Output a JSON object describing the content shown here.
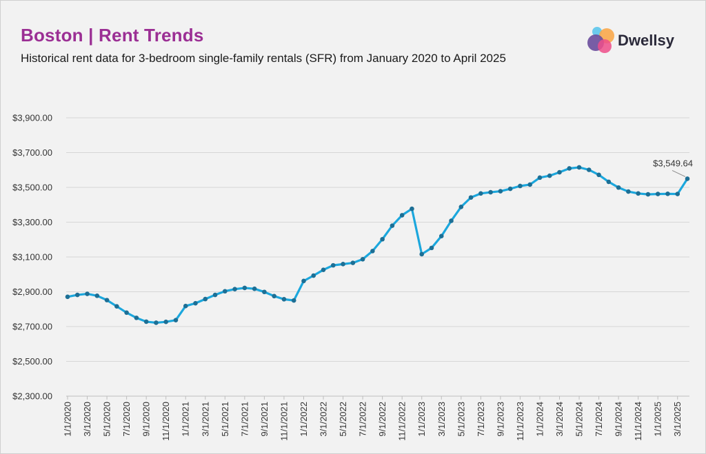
{
  "header": {
    "title": "Boston | Rent Trends",
    "subtitle": "Historical rent data for 3-bedroom single-family rentals (SFR) from January 2020 to April 2025"
  },
  "brand": {
    "name": "Dwellsy",
    "logo_colors": [
      "#5cc6ec",
      "#f9a94b",
      "#6a4c9c",
      "#ee4e8a"
    ]
  },
  "colors": {
    "line": "#1ba7dd",
    "marker": "#1d6f95",
    "grid": "#d6d6d6",
    "title": "#9b2f94"
  },
  "chart_data": {
    "type": "line",
    "title": "Boston | Rent Trends",
    "xlabel": "",
    "ylabel": "",
    "ylim": [
      2300,
      3900
    ],
    "yticks": [
      "$2,300.00",
      "$2,500.00",
      "$2,700.00",
      "$2,900.00",
      "$3,100.00",
      "$3,300.00",
      "$3,500.00",
      "$3,700.00",
      "$3,900.00"
    ],
    "grid": true,
    "x": [
      "1/1/2020",
      "2/1/2020",
      "3/1/2020",
      "4/1/2020",
      "5/1/2020",
      "6/1/2020",
      "7/1/2020",
      "8/1/2020",
      "9/1/2020",
      "10/1/2020",
      "11/1/2020",
      "12/1/2020",
      "1/1/2021",
      "2/1/2021",
      "3/1/2021",
      "4/1/2021",
      "5/1/2021",
      "6/1/2021",
      "7/1/2021",
      "8/1/2021",
      "9/1/2021",
      "10/1/2021",
      "11/1/2021",
      "12/1/2021",
      "1/1/2022",
      "2/1/2022",
      "3/1/2022",
      "4/1/2022",
      "5/1/2022",
      "6/1/2022",
      "7/1/2022",
      "8/1/2022",
      "9/1/2022",
      "10/1/2022",
      "11/1/2022",
      "12/1/2022",
      "1/1/2023",
      "2/1/2023",
      "3/1/2023",
      "4/1/2023",
      "5/1/2023",
      "6/1/2023",
      "7/1/2023",
      "8/1/2023",
      "9/1/2023",
      "10/1/2023",
      "11/1/2023",
      "12/1/2023",
      "1/1/2024",
      "2/1/2024",
      "3/1/2024",
      "4/1/2024",
      "5/1/2024",
      "6/1/2024",
      "7/1/2024",
      "8/1/2024",
      "9/1/2024",
      "10/1/2024",
      "11/1/2024",
      "12/1/2024",
      "1/1/2025",
      "2/1/2025",
      "3/1/2025",
      "4/1/2025"
    ],
    "x_tick_labels": [
      "1/1/2020",
      "3/1/2020",
      "5/1/2020",
      "7/1/2020",
      "9/1/2020",
      "11/1/2020",
      "1/1/2021",
      "3/1/2021",
      "5/1/2021",
      "7/1/2021",
      "9/1/2021",
      "11/1/2021",
      "1/1/2022",
      "3/1/2022",
      "5/1/2022",
      "7/1/2022",
      "9/1/2022",
      "11/1/2022",
      "1/1/2023",
      "3/1/2023",
      "5/1/2023",
      "7/1/2023",
      "9/1/2023",
      "11/1/2023",
      "1/1/2024",
      "3/1/2024",
      "5/1/2024",
      "7/1/2024",
      "9/1/2024",
      "11/1/2024",
      "1/1/2025",
      "3/1/2025"
    ],
    "values": [
      2871,
      2882,
      2888,
      2877,
      2852,
      2816,
      2780,
      2750,
      2728,
      2722,
      2727,
      2737,
      2818,
      2834,
      2858,
      2882,
      2903,
      2915,
      2922,
      2917,
      2899,
      2875,
      2857,
      2850,
      2962,
      2993,
      3026,
      3052,
      3059,
      3066,
      3087,
      3134,
      3202,
      3280,
      3340,
      3377,
      3116,
      3152,
      3220,
      3308,
      3388,
      3442,
      3465,
      3472,
      3478,
      3492,
      3508,
      3516,
      3556,
      3567,
      3587,
      3609,
      3615,
      3601,
      3572,
      3532,
      3499,
      3476,
      3465,
      3460,
      3462,
      3463,
      3462,
      3549.64
    ],
    "annotations": [
      {
        "x": "4/1/2025",
        "text": "$3,549.64"
      }
    ]
  }
}
